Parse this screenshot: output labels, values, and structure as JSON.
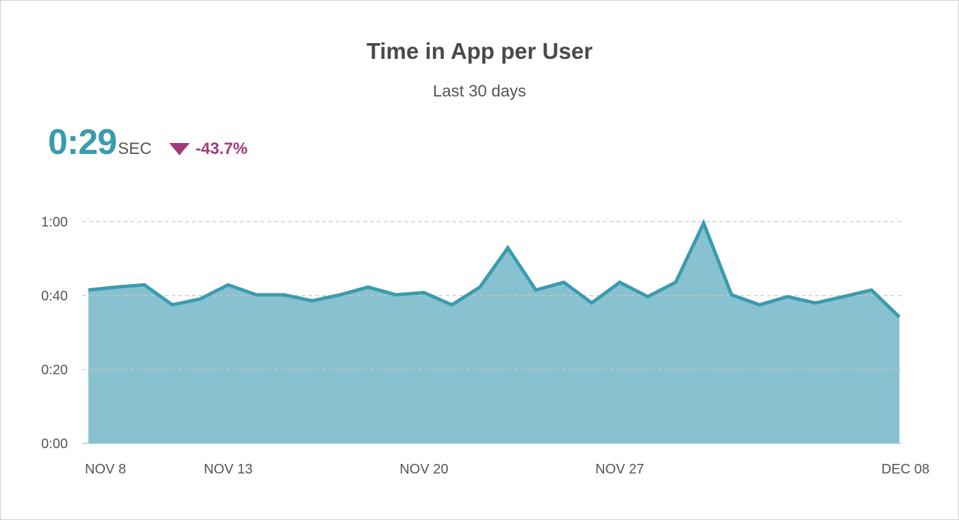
{
  "header": {
    "title": "Time in App per User",
    "subtitle": "Last 30 days"
  },
  "kpi": {
    "value": "0:29",
    "unit": "SEC",
    "change": "-43.7%",
    "direction_icon": "triangle-down-icon",
    "change_color": "#a33a7a"
  },
  "colors": {
    "line": "#3a9bb0",
    "fill": "#88c1cf",
    "grid": "#c8c8c8",
    "axis_text": "#555555"
  },
  "chart_data": {
    "type": "area",
    "title": "Time in App per User",
    "subtitle": "Last 30 days",
    "xlabel": "",
    "ylabel": "",
    "ylim": [
      0,
      60
    ],
    "yticks": [
      {
        "value": 0,
        "label": "0:00"
      },
      {
        "value": 20,
        "label": "0:20"
      },
      {
        "value": 40,
        "label": "0:40"
      },
      {
        "value": 60,
        "label": "1:00"
      }
    ],
    "xticks": [
      {
        "date": "2019-11-08",
        "label": "NOV 8"
      },
      {
        "date": "2019-11-13",
        "label": "NOV 13"
      },
      {
        "date": "2019-11-20",
        "label": "NOV 20"
      },
      {
        "date": "2019-11-27",
        "label": "NOV 27"
      },
      {
        "date": "2019-12-08",
        "label": "DEC 08"
      }
    ],
    "grid": true,
    "series": [
      {
        "values": [
          {
            "x": "2019-11-08",
            "y": 41.5
          },
          {
            "x": "2019-11-09",
            "y": 42.3
          },
          {
            "x": "2019-11-10",
            "y": 42.9
          },
          {
            "x": "2019-11-11",
            "y": 37.5
          },
          {
            "x": "2019-11-12",
            "y": 39.1
          },
          {
            "x": "2019-11-13",
            "y": 42.9
          },
          {
            "x": "2019-11-14",
            "y": 40.2
          },
          {
            "x": "2019-11-15",
            "y": 40.2
          },
          {
            "x": "2019-11-16",
            "y": 38.6
          },
          {
            "x": "2019-11-17",
            "y": 40.2
          },
          {
            "x": "2019-11-18",
            "y": 42.3
          },
          {
            "x": "2019-11-19",
            "y": 40.2
          },
          {
            "x": "2019-11-20",
            "y": 40.8
          },
          {
            "x": "2019-11-21",
            "y": 37.5
          },
          {
            "x": "2019-11-22",
            "y": 42.3
          },
          {
            "x": "2019-11-23",
            "y": 52.9
          },
          {
            "x": "2019-11-24",
            "y": 41.5
          },
          {
            "x": "2019-11-25",
            "y": 43.6
          },
          {
            "x": "2019-11-26",
            "y": 38.0
          },
          {
            "x": "2019-11-27",
            "y": 43.6
          },
          {
            "x": "2019-11-28",
            "y": 39.7
          },
          {
            "x": "2019-11-29",
            "y": 43.6
          },
          {
            "x": "2019-11-30",
            "y": 59.6
          },
          {
            "x": "2019-12-01",
            "y": 40.2
          },
          {
            "x": "2019-12-02",
            "y": 37.5
          },
          {
            "x": "2019-12-03",
            "y": 39.7
          },
          {
            "x": "2019-12-04",
            "y": 38.0
          },
          {
            "x": "2019-12-05",
            "y": 39.7
          },
          {
            "x": "2019-12-06",
            "y": 41.5
          },
          {
            "x": "2019-12-07",
            "y": 34.2
          }
        ]
      }
    ]
  }
}
